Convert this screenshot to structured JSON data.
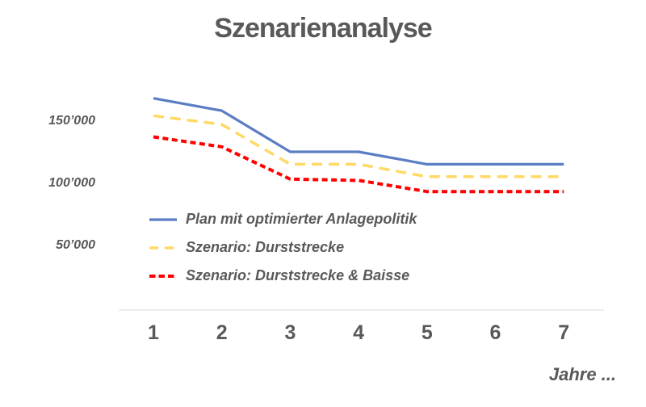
{
  "chart_data": {
    "type": "line",
    "title": "Szenarienanalyse",
    "xlabel": "Jahre ...",
    "ylabel": "",
    "x": [
      1,
      2,
      3,
      4,
      5,
      6,
      7
    ],
    "x_tick_labels": [
      "1",
      "2",
      "3",
      "4",
      "5",
      "6",
      "7"
    ],
    "y_ticks": [
      {
        "value": 150000,
        "label": "150’000"
      },
      {
        "value": 100000,
        "label": "100’000"
      },
      {
        "value": 50000,
        "label": "50’000"
      }
    ],
    "ylim": [
      0,
      175000
    ],
    "grid": false,
    "legend_position": "inside-left",
    "series": [
      {
        "name": "Plan mit optimierter Anlagepolitik",
        "color": "#5A7DC3",
        "style": "solid",
        "values": [
          169000,
          159000,
          126000,
          126000,
          116000,
          116000,
          116000
        ]
      },
      {
        "name": "Szenario: Durststrecke",
        "color": "#FFD966",
        "style": "dashed-long",
        "values": [
          155000,
          148000,
          116000,
          116000,
          106000,
          106000,
          106000
        ]
      },
      {
        "name": "Szenario: Durststrecke & Baisse",
        "color": "#FF0000",
        "style": "dashed-short",
        "values": [
          138000,
          130000,
          104000,
          103000,
          94000,
          94000,
          94000
        ]
      }
    ]
  },
  "colors": {
    "text": "#595959",
    "axis_line": "#E7E7E7",
    "background": "#FFFFFF"
  }
}
